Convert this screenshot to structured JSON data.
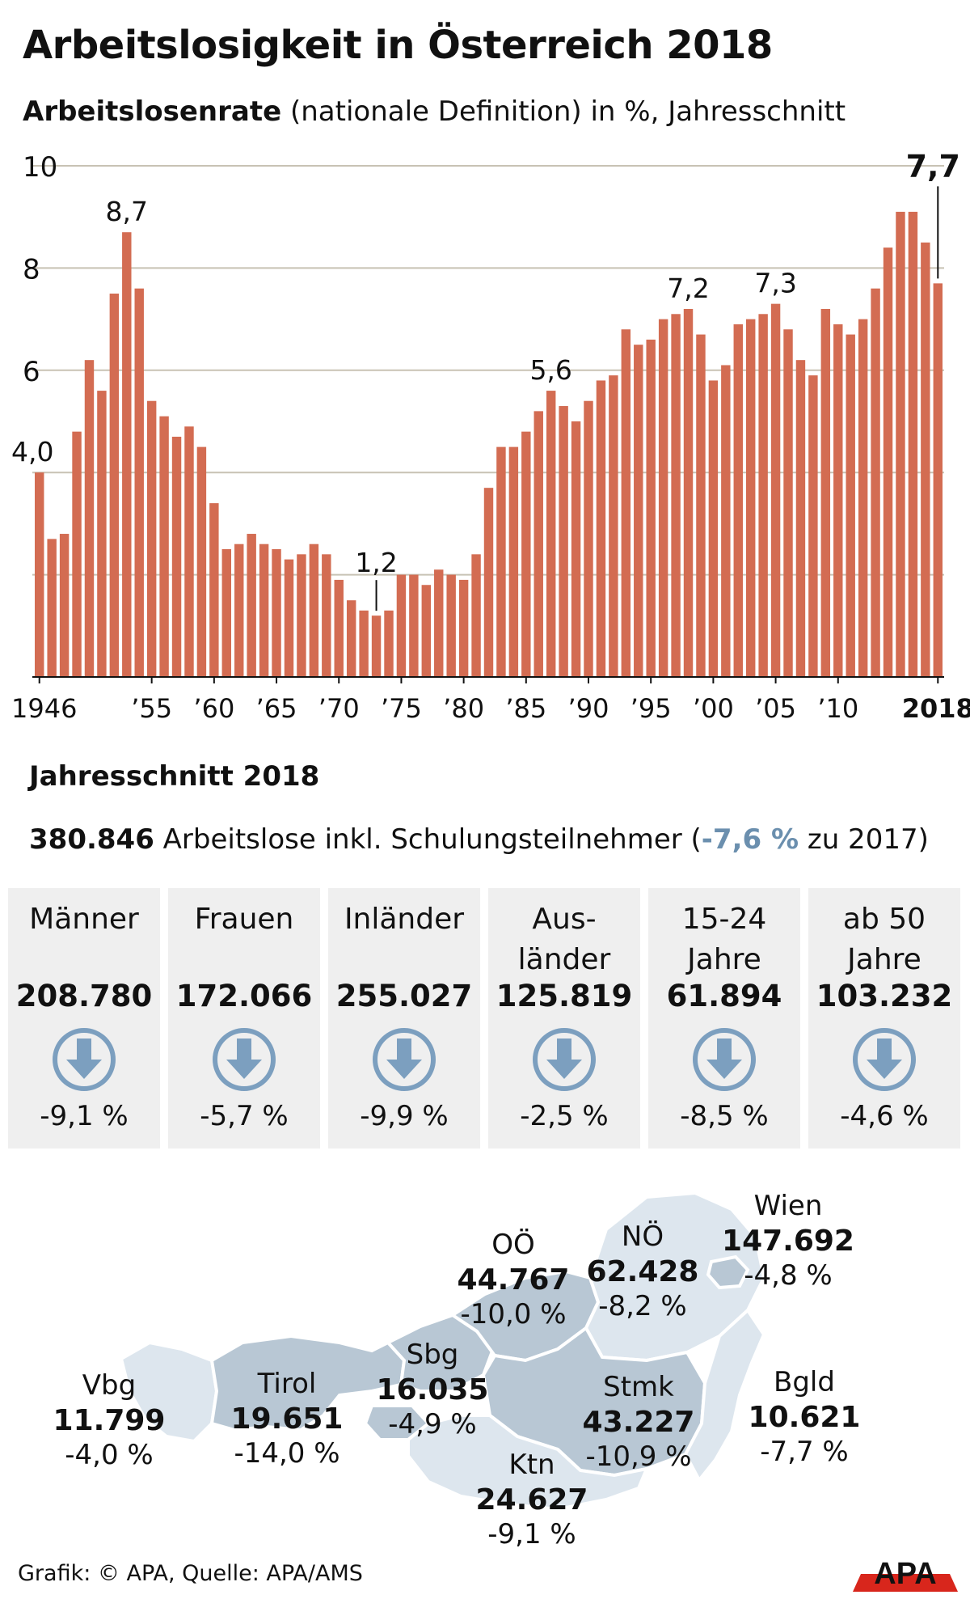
{
  "title": "Arbeitslosigkeit in Österreich 2018",
  "subtitle": {
    "bold": "Arbeitslosenrate",
    "rest": " (nationale Definition) in %, Jahresschnitt"
  },
  "colors": {
    "bar": "#d36c52",
    "grid": "#c8c2b4",
    "panel": "#efefef",
    "arrow": "#7c9fbf",
    "negative_text": "#6b8fae",
    "map_dark": "#b8c7d4",
    "map_light": "#dde6ee"
  },
  "chart_data": {
    "type": "bar",
    "title": "Arbeitslosenrate (nationale Definition) in %, Jahresschnitt",
    "xlabel": "",
    "ylabel": "%",
    "ylim": [
      0,
      10
    ],
    "yticks": [
      10,
      8,
      6
    ],
    "grid": true,
    "categories": [
      1946,
      1947,
      1948,
      1949,
      1950,
      1951,
      1952,
      1953,
      1954,
      1955,
      1956,
      1957,
      1958,
      1959,
      1960,
      1961,
      1962,
      1963,
      1964,
      1965,
      1966,
      1967,
      1968,
      1969,
      1970,
      1971,
      1972,
      1973,
      1974,
      1975,
      1976,
      1977,
      1978,
      1979,
      1980,
      1981,
      1982,
      1983,
      1984,
      1985,
      1986,
      1987,
      1988,
      1989,
      1990,
      1991,
      1992,
      1993,
      1994,
      1995,
      1996,
      1997,
      1998,
      1999,
      2000,
      2001,
      2002,
      2003,
      2004,
      2005,
      2006,
      2007,
      2008,
      2009,
      2010,
      2011,
      2012,
      2013,
      2014,
      2015,
      2016,
      2017,
      2018
    ],
    "values": [
      4.0,
      2.7,
      2.8,
      4.8,
      6.2,
      5.6,
      7.5,
      8.7,
      7.6,
      5.4,
      5.1,
      4.7,
      4.9,
      4.5,
      3.4,
      2.5,
      2.6,
      2.8,
      2.6,
      2.5,
      2.3,
      2.4,
      2.6,
      2.4,
      1.9,
      1.5,
      1.3,
      1.2,
      1.3,
      2.0,
      2.0,
      1.8,
      2.1,
      2.0,
      1.9,
      2.4,
      3.7,
      4.5,
      4.5,
      4.8,
      5.2,
      5.6,
      5.3,
      5.0,
      5.4,
      5.8,
      5.9,
      6.8,
      6.5,
      6.6,
      7.0,
      7.1,
      7.2,
      6.7,
      5.8,
      6.1,
      6.9,
      7.0,
      7.1,
      7.3,
      6.8,
      6.2,
      5.9,
      7.2,
      6.9,
      6.7,
      7.0,
      7.6,
      8.4,
      9.1,
      9.1,
      8.5,
      7.7
    ],
    "x_tick_labels": [
      "1946",
      "’55",
      "’60",
      "’65",
      "’70",
      "’75",
      "’80",
      "’85",
      "’90",
      "’95",
      "’00",
      "’05",
      "’10",
      "2018"
    ],
    "x_tick_years": [
      1946,
      1955,
      1960,
      1965,
      1970,
      1975,
      1980,
      1985,
      1990,
      1995,
      2000,
      2005,
      2010,
      2018
    ],
    "annotations": [
      {
        "year": 1946,
        "label": "4,0"
      },
      {
        "year": 1953,
        "label": "8,7"
      },
      {
        "year": 1973,
        "label": "1,2"
      },
      {
        "year": 1987,
        "label": "5,6"
      },
      {
        "year": 1998,
        "label": "7,2"
      },
      {
        "year": 2005,
        "label": "7,3"
      },
      {
        "year": 2018,
        "label": "7,7"
      }
    ]
  },
  "summary": {
    "heading": "Jahresschnitt 2018",
    "total": "380.846",
    "text_before": " Arbeitslose inkl. Schulungsteilnehmer (",
    "change": "-7,6 %",
    "text_after": " zu 2017)"
  },
  "groups": [
    {
      "label": "Männer",
      "value": "208.780",
      "change": "-9,1 %",
      "icon": "arrow-down-icon"
    },
    {
      "label": "Frauen",
      "value": "172.066",
      "change": "-5,7 %",
      "icon": "arrow-down-icon"
    },
    {
      "label": "Inländer",
      "value": "255.027",
      "change": "-9,9 %",
      "icon": "arrow-down-icon"
    },
    {
      "label": "Aus-\nländer",
      "value": "125.819",
      "change": "-2,5 %",
      "icon": "arrow-down-icon"
    },
    {
      "label": "15-24\nJahre",
      "value": "61.894",
      "change": "-8,5 %",
      "icon": "arrow-down-icon"
    },
    {
      "label": "ab 50\nJahre",
      "value": "103.232",
      "change": "-4,6 %",
      "icon": "arrow-down-icon"
    }
  ],
  "regions": {
    "wien": {
      "name": "Wien",
      "value": "147.692",
      "change": "-4,8 %"
    },
    "noe": {
      "name": "NÖ",
      "value": "62.428",
      "change": "-8,2 %"
    },
    "ooe": {
      "name": "OÖ",
      "value": "44.767",
      "change": "-10,0 %"
    },
    "sbg": {
      "name": "Sbg",
      "value": "16.035",
      "change": "-4,9 %"
    },
    "tirol": {
      "name": "Tirol",
      "value": "19.651",
      "change": "-14,0 %"
    },
    "vbg": {
      "name": "Vbg",
      "value": "11.799",
      "change": "-4,0 %"
    },
    "stmk": {
      "name": "Stmk",
      "value": "43.227",
      "change": "-10,9 %"
    },
    "ktn": {
      "name": "Ktn",
      "value": "24.627",
      "change": "-9,1 %"
    },
    "bgld": {
      "name": "Bgld",
      "value": "10.621",
      "change": "-7,7 %"
    }
  },
  "credit": "Grafik: © APA, Quelle: APA/AMS",
  "logo": "APA"
}
